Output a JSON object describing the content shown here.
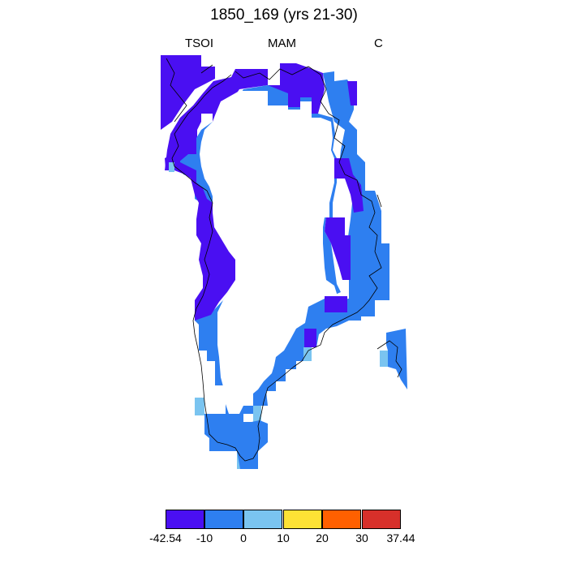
{
  "title": "1850_169 (yrs 21-30)",
  "subtitle_left": "TSOI",
  "subtitle_center": "MAM",
  "subtitle_right": "C",
  "colors": {
    "bin1": "#4a0ff2",
    "bin2": "#2e7ff0",
    "bin3": "#7ac4f0",
    "bin4": "#fde235",
    "bin5": "#ff6000",
    "bin6": "#d7302a",
    "coast": "#000000",
    "background": "#ffffff"
  },
  "colorbar": {
    "labels": [
      "-42.54",
      "-10",
      "0",
      "10",
      "20",
      "30",
      "37.44"
    ]
  }
}
